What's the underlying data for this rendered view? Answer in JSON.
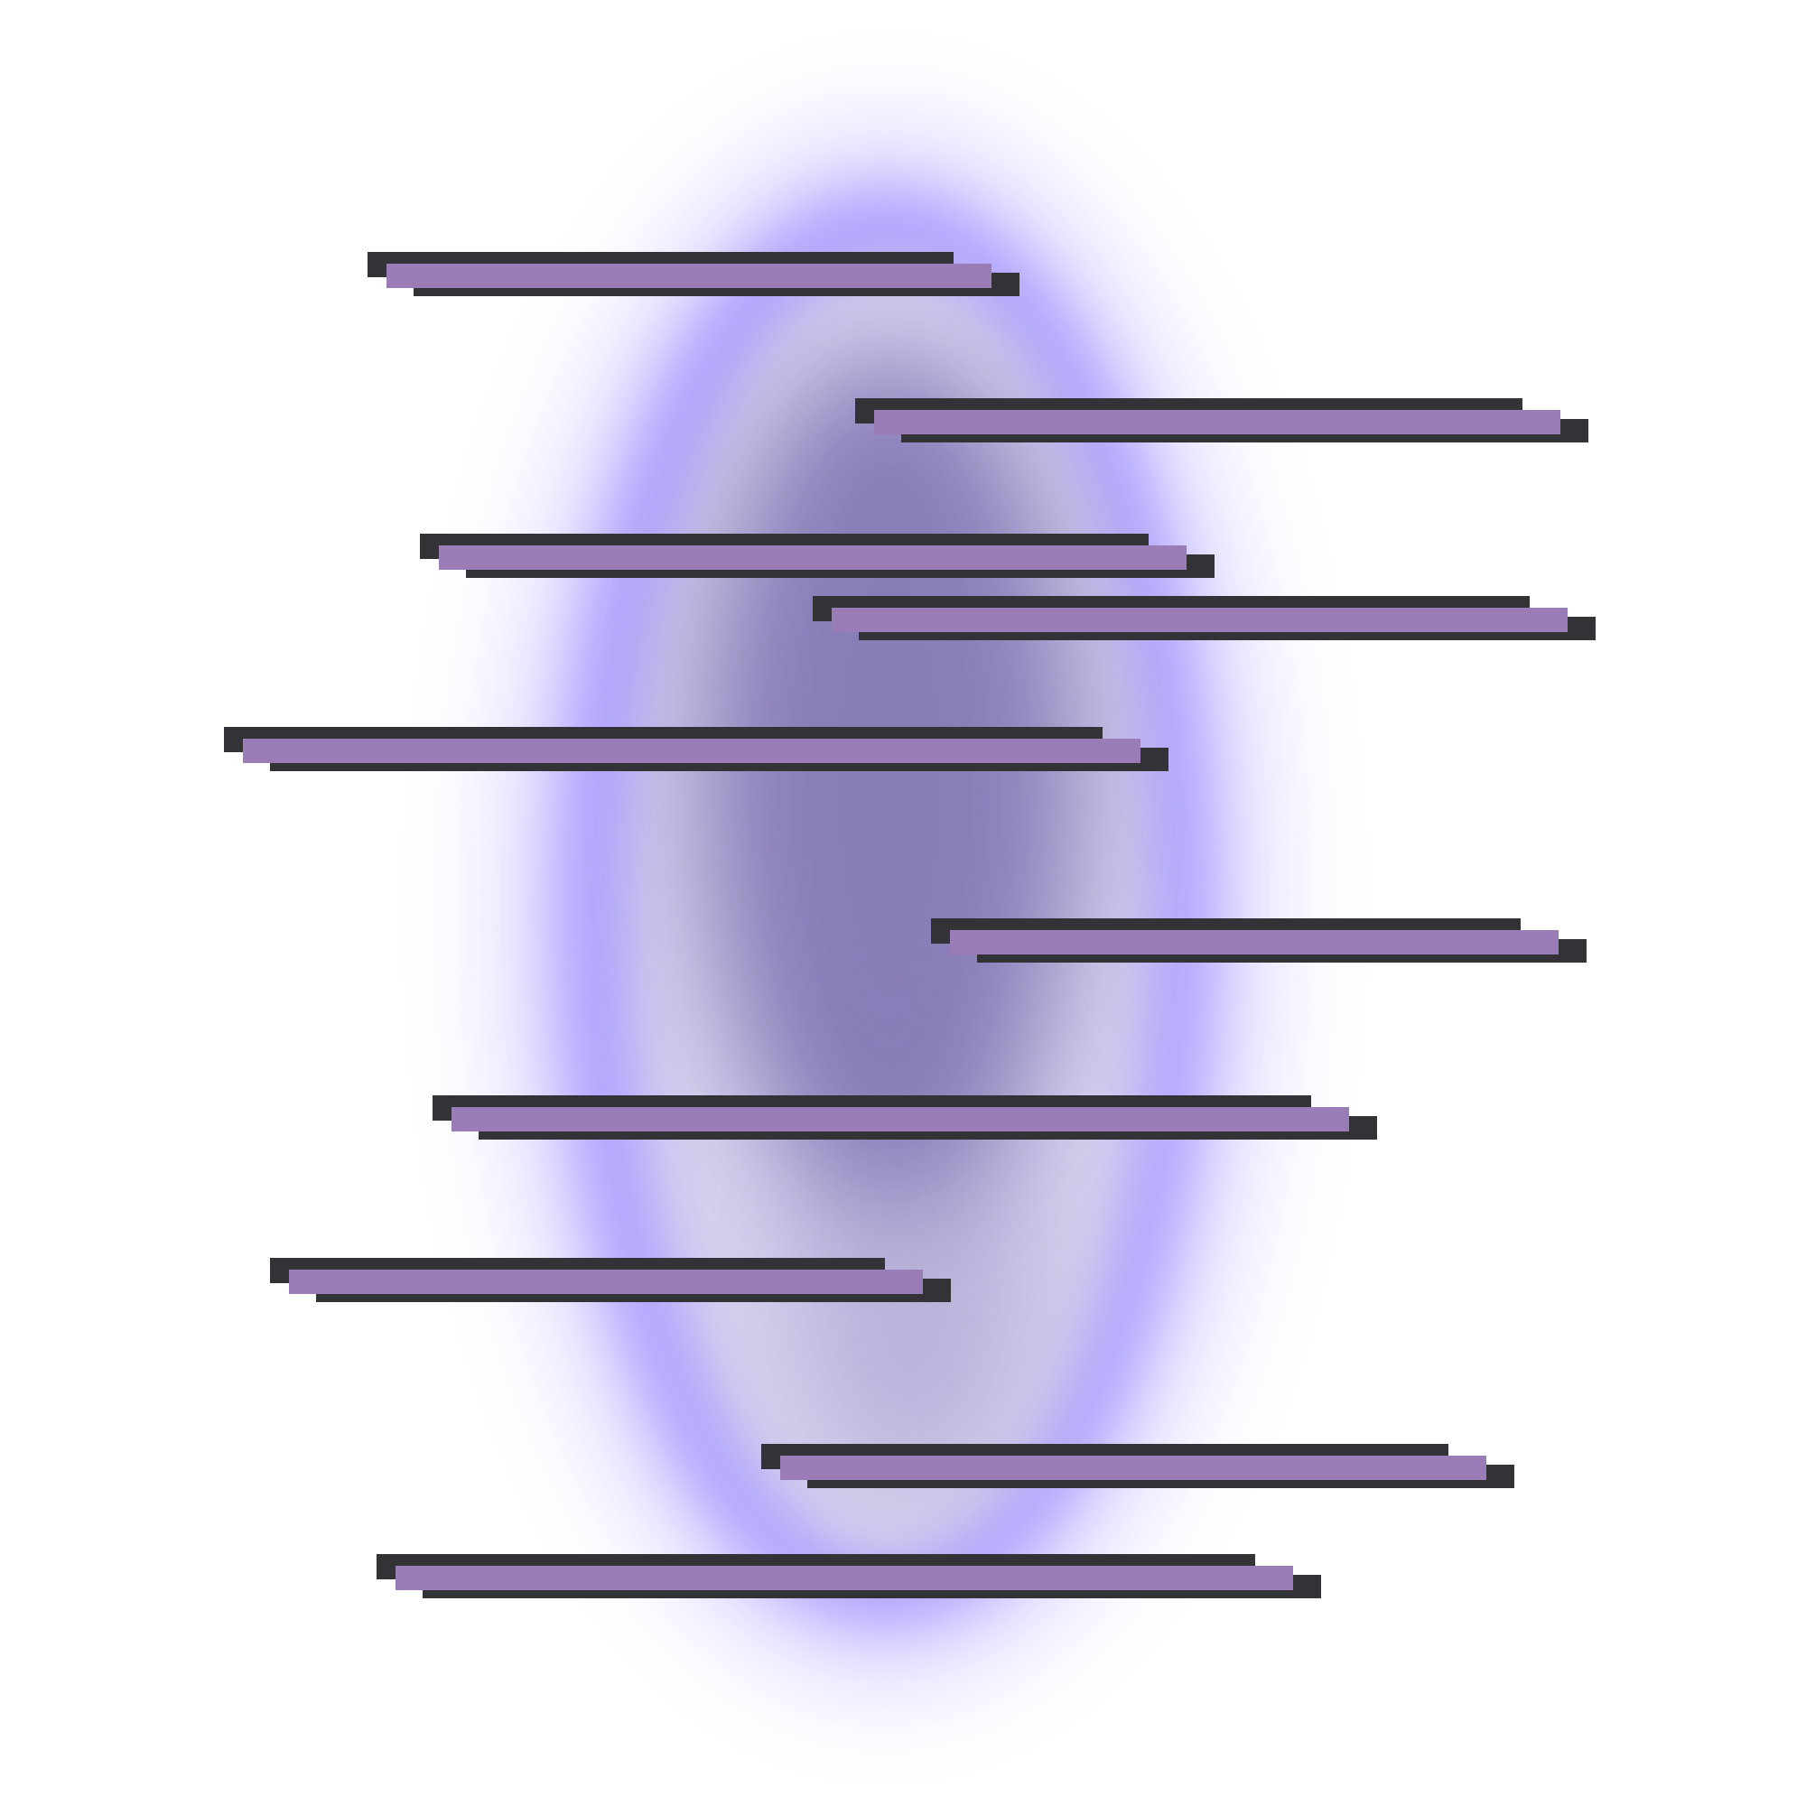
{
  "colors": {
    "background": "#ffffff",
    "portal_glow": "#a99bff",
    "portal_inner": "#d6d2ee",
    "portal_core": "#8579b5",
    "bar_fill": "#9a7cb6",
    "bar_shadow": "#333236"
  },
  "bar_count": 10
}
